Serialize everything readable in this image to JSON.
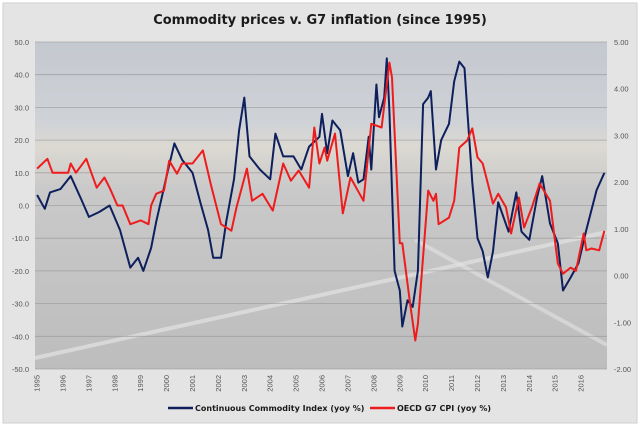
{
  "chart_data": {
    "type": "line",
    "title": "Commodity prices v. G7 inflation (since 1995)",
    "xlabel": "",
    "ylabel_left": "",
    "ylabel_right": "",
    "xlim": [
      1994.92,
      2017.0
    ],
    "ylim_left": [
      -50,
      50
    ],
    "ylim_right": [
      -2,
      5
    ],
    "grid": true,
    "legend_position": "bottom",
    "left_ticks": [
      "50.0",
      "40.0",
      "30.0",
      "20.0",
      "10.0",
      "0.0",
      "-10.0",
      "-20.0",
      "-30.0",
      "-40.0",
      "-50.0"
    ],
    "left_tick_values": [
      50,
      40,
      30,
      20,
      10,
      0,
      -10,
      -20,
      -30,
      -40,
      -50
    ],
    "right_ticks": [
      "5.00",
      "4.00",
      "3.00",
      "2.00",
      "1.00",
      "0.00",
      "-1.00",
      "-2.00"
    ],
    "right_tick_values": [
      5,
      4,
      3,
      2,
      1,
      0,
      -1,
      -2
    ],
    "x_ticks": [
      "1995",
      "1996",
      "1997",
      "1998",
      "1999",
      "2000",
      "2001",
      "2002",
      "2003",
      "2004",
      "2005",
      "2006",
      "2007",
      "2008",
      "2009",
      "2010",
      "2011",
      "2012",
      "2013",
      "2014",
      "2015",
      "2016"
    ],
    "series": [
      {
        "name": "Continuous Commodity Index (yoy %)",
        "axis": "left",
        "color": "#0d1f5c",
        "points": [
          [
            1995.0,
            3.2
          ],
          [
            1995.3,
            -1
          ],
          [
            1995.5,
            4
          ],
          [
            1995.9,
            5
          ],
          [
            1996.3,
            9
          ],
          [
            1996.7,
            2
          ],
          [
            1997.0,
            -3.5
          ],
          [
            1997.4,
            -2
          ],
          [
            1997.8,
            0
          ],
          [
            1998.2,
            -7.5
          ],
          [
            1998.6,
            -19
          ],
          [
            1998.9,
            -16
          ],
          [
            1999.1,
            -20
          ],
          [
            1999.4,
            -13
          ],
          [
            1999.6,
            -5
          ],
          [
            2000.0,
            9
          ],
          [
            2000.3,
            19
          ],
          [
            2000.6,
            14
          ],
          [
            2001.0,
            10
          ],
          [
            2001.3,
            1
          ],
          [
            2001.6,
            -7.5
          ],
          [
            2001.8,
            -16
          ],
          [
            2002.1,
            -16
          ],
          [
            2002.3,
            -5
          ],
          [
            2002.6,
            8
          ],
          [
            2002.8,
            23
          ],
          [
            2003.0,
            33
          ],
          [
            2003.2,
            15
          ],
          [
            2003.6,
            11
          ],
          [
            2004.0,
            8
          ],
          [
            2004.2,
            22
          ],
          [
            2004.5,
            15
          ],
          [
            2004.9,
            15
          ],
          [
            2005.2,
            11
          ],
          [
            2005.5,
            18
          ],
          [
            2005.9,
            21
          ],
          [
            2006.0,
            28
          ],
          [
            2006.2,
            16
          ],
          [
            2006.4,
            26
          ],
          [
            2006.7,
            23
          ],
          [
            2007.0,
            9
          ],
          [
            2007.2,
            16
          ],
          [
            2007.4,
            7
          ],
          [
            2007.6,
            8
          ],
          [
            2007.8,
            21
          ],
          [
            2007.9,
            11
          ],
          [
            2008.1,
            37
          ],
          [
            2008.2,
            27
          ],
          [
            2008.4,
            33
          ],
          [
            2008.5,
            45
          ],
          [
            2008.6,
            29
          ],
          [
            2008.8,
            -20
          ],
          [
            2009.0,
            -26
          ],
          [
            2009.1,
            -37
          ],
          [
            2009.3,
            -29
          ],
          [
            2009.5,
            -31
          ],
          [
            2009.7,
            -20
          ],
          [
            2009.9,
            31
          ],
          [
            2010.1,
            33
          ],
          [
            2010.2,
            35
          ],
          [
            2010.4,
            11
          ],
          [
            2010.6,
            20
          ],
          [
            2010.9,
            25
          ],
          [
            2011.1,
            38
          ],
          [
            2011.3,
            44
          ],
          [
            2011.5,
            42
          ],
          [
            2011.6,
            30
          ],
          [
            2011.8,
            7
          ],
          [
            2012.0,
            -10
          ],
          [
            2012.2,
            -14
          ],
          [
            2012.4,
            -22
          ],
          [
            2012.6,
            -14
          ],
          [
            2012.8,
            1
          ],
          [
            2013.0,
            -3.5
          ],
          [
            2013.2,
            -8
          ],
          [
            2013.5,
            4
          ],
          [
            2013.7,
            -8
          ],
          [
            2014.0,
            -10.5
          ],
          [
            2014.3,
            2.5
          ],
          [
            2014.5,
            9
          ],
          [
            2014.8,
            -5.5
          ],
          [
            2015.1,
            -11.5
          ],
          [
            2015.3,
            -26
          ],
          [
            2015.6,
            -22
          ],
          [
            2015.9,
            -17.6
          ],
          [
            2016.2,
            -7.5
          ],
          [
            2016.6,
            4.7
          ],
          [
            2016.9,
            10
          ]
        ]
      },
      {
        "name": "OECD G7 CPI (yoy %)",
        "axis": "right",
        "color": "#ee1c1c",
        "points": [
          [
            1995.0,
            2.29
          ],
          [
            1995.4,
            2.5
          ],
          [
            1995.6,
            2.2
          ],
          [
            1996.2,
            2.2
          ],
          [
            1996.3,
            2.4
          ],
          [
            1996.5,
            2.2
          ],
          [
            1996.9,
            2.5
          ],
          [
            1997.3,
            1.88
          ],
          [
            1997.6,
            2.1
          ],
          [
            1997.8,
            1.88
          ],
          [
            1998.1,
            1.5
          ],
          [
            1998.3,
            1.5
          ],
          [
            1998.6,
            1.1
          ],
          [
            1999.0,
            1.18
          ],
          [
            1999.3,
            1.1
          ],
          [
            1999.4,
            1.5
          ],
          [
            1999.6,
            1.75
          ],
          [
            1999.9,
            1.82
          ],
          [
            2000.1,
            2.46
          ],
          [
            2000.4,
            2.18
          ],
          [
            2000.6,
            2.4
          ],
          [
            2001.0,
            2.4
          ],
          [
            2001.4,
            2.68
          ],
          [
            2001.7,
            1.97
          ],
          [
            2002.1,
            1.1
          ],
          [
            2002.5,
            0.96
          ],
          [
            2002.7,
            1.46
          ],
          [
            2003.1,
            2.29
          ],
          [
            2003.3,
            1.6
          ],
          [
            2003.7,
            1.75
          ],
          [
            2004.1,
            1.39
          ],
          [
            2004.5,
            2.4
          ],
          [
            2004.8,
            2.03
          ],
          [
            2005.1,
            2.25
          ],
          [
            2005.5,
            1.88
          ],
          [
            2005.7,
            3.17
          ],
          [
            2005.9,
            2.4
          ],
          [
            2006.1,
            2.74
          ],
          [
            2006.2,
            2.46
          ],
          [
            2006.5,
            3.04
          ],
          [
            2006.8,
            1.33
          ],
          [
            2007.1,
            2.1
          ],
          [
            2007.6,
            1.6
          ],
          [
            2007.9,
            3.25
          ],
          [
            2008.3,
            3.17
          ],
          [
            2008.6,
            4.56
          ],
          [
            2008.7,
            4.24
          ],
          [
            2009.0,
            0.69
          ],
          [
            2009.1,
            0.69
          ],
          [
            2009.4,
            -0.6
          ],
          [
            2009.6,
            -1.39
          ],
          [
            2009.7,
            -1.03
          ],
          [
            2010.1,
            1.82
          ],
          [
            2010.3,
            1.6
          ],
          [
            2010.4,
            1.75
          ],
          [
            2010.5,
            1.1
          ],
          [
            2010.9,
            1.24
          ],
          [
            2011.1,
            1.6
          ],
          [
            2011.3,
            2.74
          ],
          [
            2011.6,
            2.89
          ],
          [
            2011.8,
            3.15
          ],
          [
            2012.0,
            2.53
          ],
          [
            2012.2,
            2.4
          ],
          [
            2012.6,
            1.54
          ],
          [
            2012.8,
            1.75
          ],
          [
            2013.1,
            1.46
          ],
          [
            2013.3,
            0.9
          ],
          [
            2013.6,
            1.67
          ],
          [
            2013.8,
            1.03
          ],
          [
            2014.1,
            1.46
          ],
          [
            2014.4,
            1.97
          ],
          [
            2014.8,
            1.6
          ],
          [
            2015.1,
            0.26
          ],
          [
            2015.3,
            0.04
          ],
          [
            2015.6,
            0.17
          ],
          [
            2015.8,
            0.1
          ],
          [
            2016.1,
            0.9
          ],
          [
            2016.2,
            0.54
          ],
          [
            2016.4,
            0.58
          ],
          [
            2016.7,
            0.54
          ],
          [
            2016.9,
            0.96
          ]
        ]
      }
    ]
  }
}
